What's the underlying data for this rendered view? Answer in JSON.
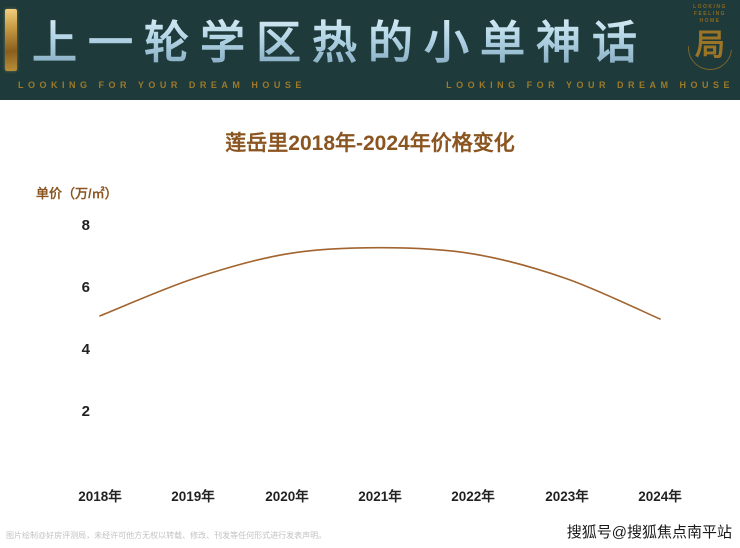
{
  "banner": {
    "title": "上一轮学区热的小单神话",
    "tagline_left": "LOOKING FOR YOUR DREAM HOUSE",
    "tagline_right": "LOOKING FOR YOUR DREAM HOUSE",
    "logo": {
      "line1": "LOOKING",
      "line2": "FEELING",
      "line3": "HOME",
      "seal": "局"
    },
    "colors": {
      "background": "#1e3a3a",
      "title": "#b7d8e8",
      "gold": "#9c7a2a"
    }
  },
  "chart_data": {
    "type": "line",
    "title": "莲岳里2018年-2024年价格变化",
    "ylabel": "单价（万/㎡）",
    "xlabel": "",
    "categories": [
      "2018年",
      "2019年",
      "2020年",
      "2021年",
      "2022年",
      "2023年",
      "2024年"
    ],
    "values": [
      5.1,
      6.3,
      7.1,
      7.3,
      7.1,
      6.3,
      5.0
    ],
    "yticks": [
      "8",
      "6",
      "4",
      "2"
    ],
    "ylim": [
      0,
      9
    ],
    "grid": false,
    "legend": "none",
    "line_color": "#a2642e"
  },
  "footer": {
    "disclaimer": "图片绘制@好房评测局，未经许可他方无权以转载、修改、刊发等任何形式进行发表声明。",
    "credit": "搜狐号@搜狐焦点南平站"
  }
}
